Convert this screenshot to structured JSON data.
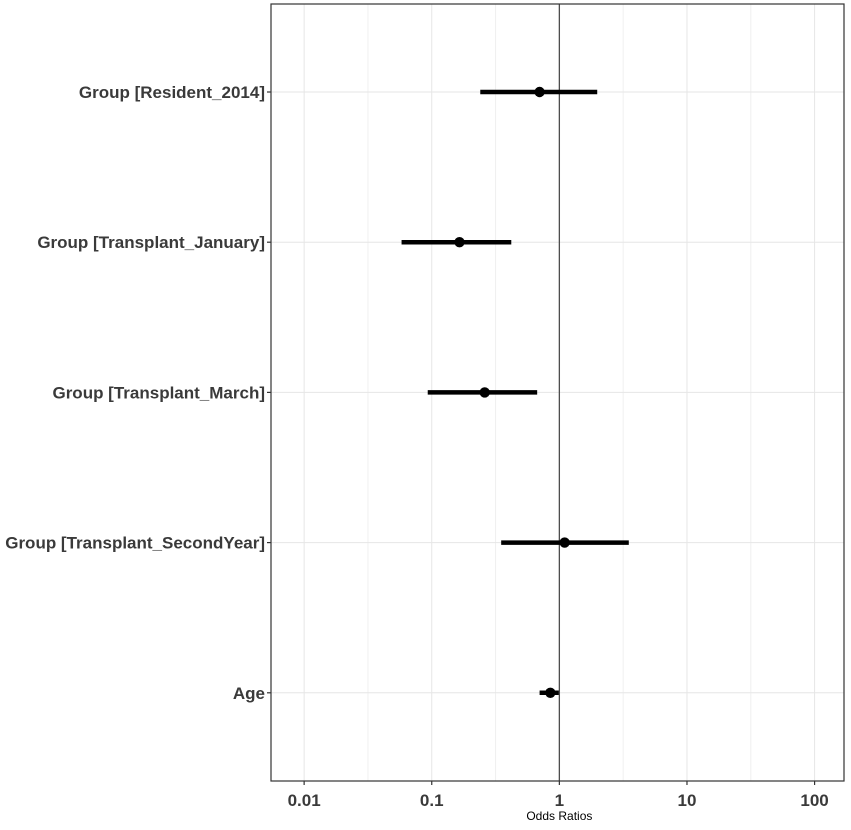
{
  "chart_data": {
    "type": "scatter",
    "subtype": "forest-plot",
    "title": "",
    "xlabel": "Odds Ratios",
    "ylabel": "",
    "x_scale": "log10",
    "xlim": [
      0.0055,
      170
    ],
    "x_ticks": [
      0.01,
      0.1,
      1,
      10,
      100
    ],
    "x_tick_labels": [
      "0.01",
      "0.1",
      "1",
      "10",
      "100"
    ],
    "reference_line": 1,
    "grid": true,
    "legend": "none",
    "terms": [
      "Group [Resident_2014]",
      "Group [Transplant_January]",
      "Group [Transplant_March]",
      "Group [Transplant_SecondYear]",
      "Age"
    ],
    "estimates": [
      0.7,
      0.165,
      0.26,
      1.1,
      0.85
    ],
    "ci_low": [
      0.24,
      0.058,
      0.093,
      0.35,
      0.7
    ],
    "ci_high": [
      1.98,
      0.42,
      0.67,
      3.5,
      0.99
    ],
    "colors": {
      "point": "#000000",
      "errorbar": "#000000",
      "reference_line": "#4d4d4d",
      "panel_border": "#333333",
      "label_text": "#3a3a3a"
    }
  }
}
